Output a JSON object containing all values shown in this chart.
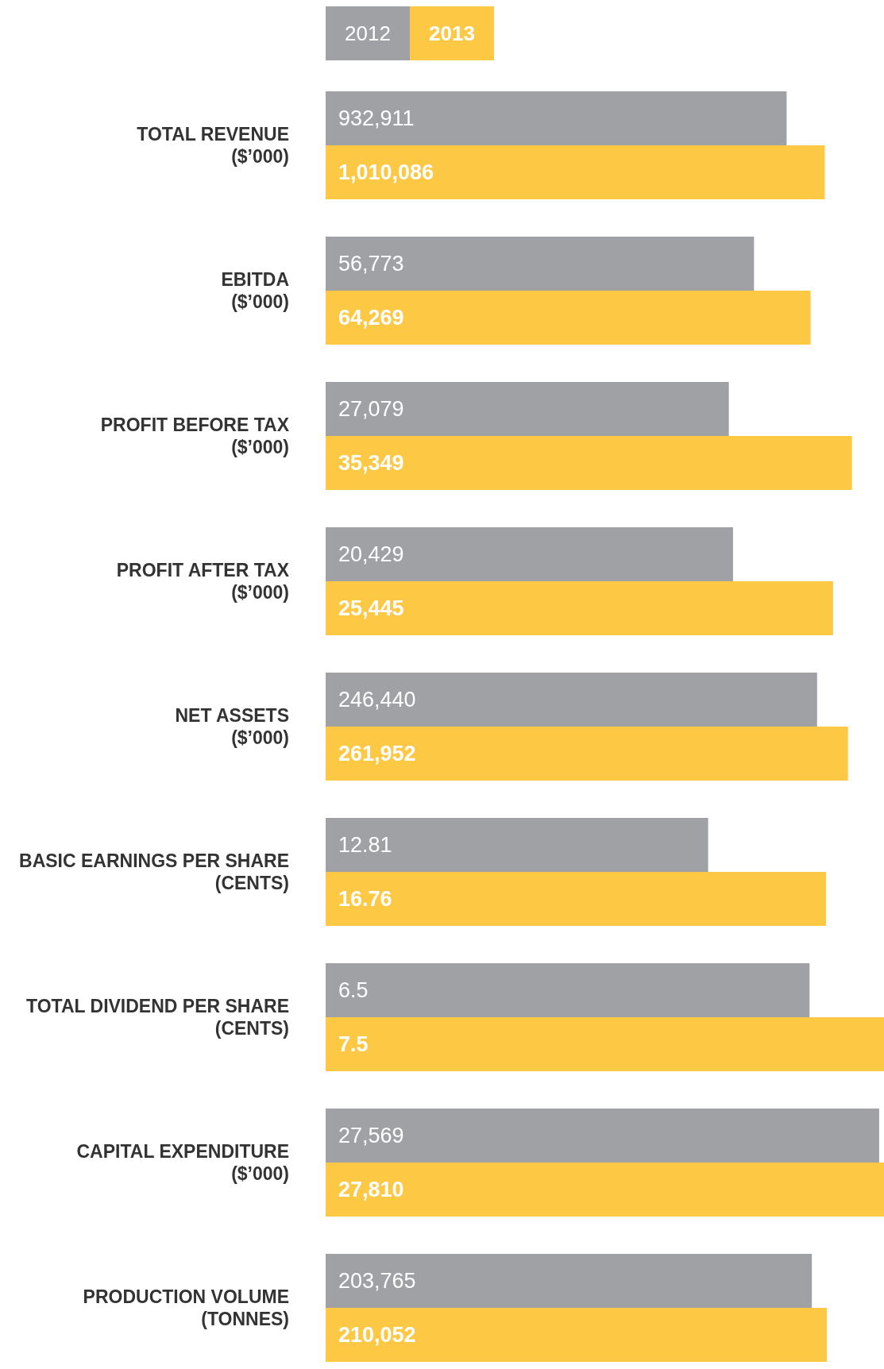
{
  "chart_data": [
    {
      "type": "bar",
      "orientation": "horizontal",
      "legend": "top",
      "tick_labels": "y",
      "categories": [
        "TOTAL REVENUE ($’000)"
      ],
      "xlim": [
        0,
        1130000
      ],
      "series": [
        {
          "name": "2012",
          "color": "#a0a1a4",
          "values": [
            932911
          ],
          "value_labels": [
            "932,911"
          ]
        },
        {
          "name": "2013",
          "color": "#fdc844",
          "values": [
            1010086
          ],
          "value_labels": [
            "1,010,086"
          ]
        }
      ]
    },
    {
      "type": "bar",
      "orientation": "horizontal",
      "tick_labels": "y",
      "categories": [
        "EBITDA ($’000)"
      ],
      "xlim": [
        0,
        74000
      ],
      "series": [
        {
          "color": "#a0a1a4",
          "values": [
            56773
          ],
          "value_labels": [
            "56,773"
          ]
        },
        {
          "color": "#fdc844",
          "values": [
            64269
          ],
          "value_labels": [
            "64,269"
          ]
        }
      ]
    },
    {
      "type": "bar",
      "orientation": "horizontal",
      "tick_labels": "y",
      "categories": [
        "PROFIT BEFORE TAX ($’000)"
      ],
      "xlim": [
        0,
        37500
      ],
      "series": [
        {
          "color": "#a0a1a4",
          "values": [
            27079
          ],
          "value_labels": [
            "27,079"
          ]
        },
        {
          "color": "#fdc844",
          "values": [
            35349
          ],
          "value_labels": [
            "35,349"
          ]
        }
      ]
    },
    {
      "type": "bar",
      "orientation": "horizontal",
      "tick_labels": "y",
      "categories": [
        "PROFIT AFTER TAX ($’000)"
      ],
      "xlim": [
        0,
        28000
      ],
      "series": [
        {
          "color": "#a0a1a4",
          "values": [
            20429
          ],
          "value_labels": [
            "20,429"
          ]
        },
        {
          "color": "#fdc844",
          "values": [
            25445
          ],
          "value_labels": [
            "25,445"
          ]
        }
      ]
    },
    {
      "type": "bar",
      "orientation": "horizontal",
      "tick_labels": "y",
      "categories": [
        "NET ASSETS ($’000)"
      ],
      "xlim": [
        0,
        280000
      ],
      "series": [
        {
          "color": "#a0a1a4",
          "values": [
            246440
          ],
          "value_labels": [
            "246,440"
          ]
        },
        {
          "color": "#fdc844",
          "values": [
            261952
          ],
          "value_labels": [
            "261,952"
          ]
        }
      ]
    },
    {
      "type": "bar",
      "orientation": "horizontal",
      "tick_labels": "y",
      "categories": [
        "BASIC EARNINGS PER SHARE (CENTS)"
      ],
      "xlim": [
        0,
        18.7
      ],
      "series": [
        {
          "color": "#a0a1a4",
          "values": [
            12.81
          ],
          "value_labels": [
            "12.81"
          ]
        },
        {
          "color": "#fdc844",
          "values": [
            16.76
          ],
          "value_labels": [
            "16.76"
          ]
        }
      ]
    },
    {
      "type": "bar",
      "orientation": "horizontal",
      "tick_labels": "y",
      "categories": [
        "TOTAL DIVIDEND PER SHARE (CENTS)"
      ],
      "xlim": [
        0,
        7.5
      ],
      "series": [
        {
          "color": "#a0a1a4",
          "values": [
            6.5
          ],
          "value_labels": [
            "6.5"
          ]
        },
        {
          "color": "#fdc844",
          "values": [
            7.5
          ],
          "value_labels": [
            "7.5"
          ]
        }
      ]
    },
    {
      "type": "bar",
      "orientation": "horizontal",
      "tick_labels": "y",
      "categories": [
        "CAPITAL EXPENDITURE ($’000)"
      ],
      "xlim": [
        0,
        27810
      ],
      "series": [
        {
          "color": "#a0a1a4",
          "values": [
            27569
          ],
          "value_labels": [
            "27,569"
          ]
        },
        {
          "color": "#fdc844",
          "values": [
            27810
          ],
          "value_labels": [
            "27,810"
          ]
        }
      ]
    },
    {
      "type": "bar",
      "orientation": "horizontal",
      "tick_labels": "y",
      "categories": [
        "PRODUCTION VOLUME (TONNES)"
      ],
      "xlim": [
        0,
        234000
      ],
      "series": [
        {
          "color": "#a0a1a4",
          "values": [
            203765
          ],
          "value_labels": [
            "203,765"
          ]
        },
        {
          "color": "#fdc844",
          "values": [
            210052
          ],
          "value_labels": [
            "210,052"
          ]
        }
      ]
    }
  ]
}
